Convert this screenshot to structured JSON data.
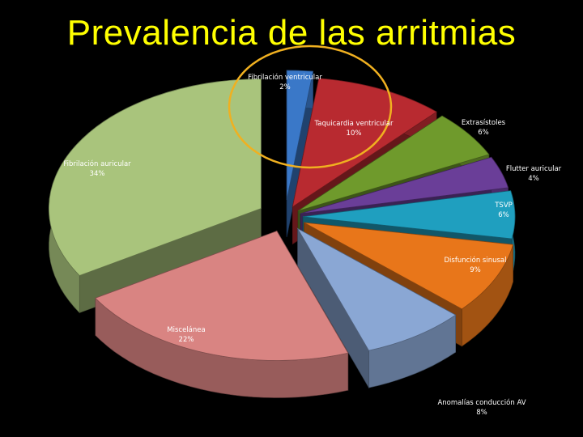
{
  "slide": {
    "title": "Prevalencia de las arritmias"
  },
  "chart_data": {
    "type": "pie",
    "style": "3d-exploded",
    "title": "",
    "legend": "none",
    "labels_shown": "category-name and percentage",
    "highlight": {
      "category": "Fibrilación ventricular",
      "shape": "ellipse",
      "color": "#f0b020"
    },
    "slices": [
      {
        "label": "Fibrilación ventricular",
        "value": 2,
        "value_label": "2%",
        "color": "#3a78c8"
      },
      {
        "label": "Taquicardia ventricular",
        "value": 10,
        "value_label": "10%",
        "color": "#b82a30"
      },
      {
        "label": "Extrasístoles",
        "value": 6,
        "value_label": "6%",
        "color": "#6f9a2c"
      },
      {
        "label": "Flutter auricular",
        "value": 4,
        "value_label": "4%",
        "color": "#6a3e98"
      },
      {
        "label": "TSVP",
        "value": 6,
        "value_label": "6%",
        "color": "#1f9fbf"
      },
      {
        "label": "Disfunción sinusal",
        "value": 9,
        "value_label": "9%",
        "color": "#e8761a"
      },
      {
        "label": "Anomalías conducción AV",
        "value": 8,
        "value_label": "8%",
        "color": "#8aa7d4"
      },
      {
        "label": "Miscelánea",
        "value": 22,
        "value_label": "22%",
        "color": "#d98482"
      },
      {
        "label": "Fibrilación auricular",
        "value": 34,
        "value_label": "34%",
        "color": "#a9c47c"
      }
    ]
  }
}
